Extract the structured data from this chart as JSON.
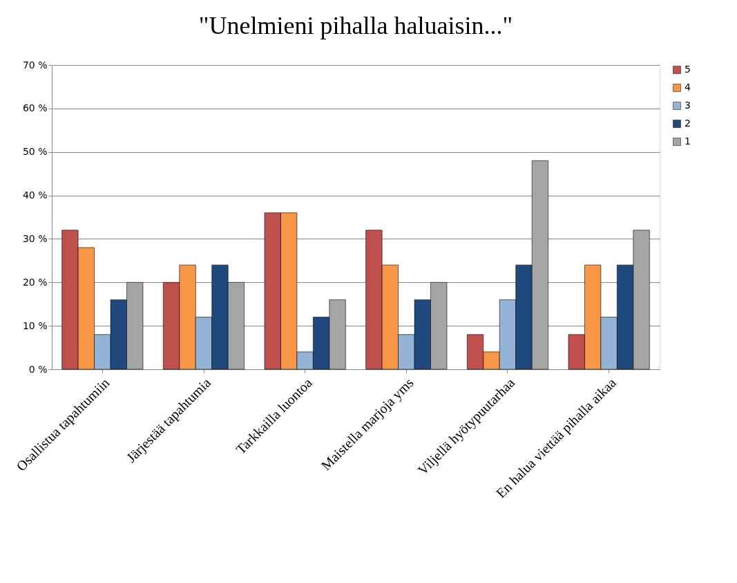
{
  "chart_data": {
    "type": "bar",
    "title": "\"Unelmieni pihalla haluaisin...\"",
    "categories": [
      "Osallistua tapahtumiin",
      "Järjestää tapahtumia",
      "Tarkkailla luontoa",
      "Maistella marjoja yms",
      "Viljellä hyötypuutarhaa",
      "En halua viettää pihalla aikaa"
    ],
    "series": [
      {
        "name": "5",
        "color": "#c0504d",
        "values": [
          32,
          20,
          36,
          32,
          8,
          8
        ]
      },
      {
        "name": "4",
        "color": "#f79646",
        "values": [
          28,
          24,
          36,
          24,
          4,
          24
        ]
      },
      {
        "name": "3",
        "color": "#95b3d7",
        "values": [
          8,
          12,
          4,
          8,
          16,
          12
        ]
      },
      {
        "name": "2",
        "color": "#1f497d",
        "values": [
          16,
          24,
          12,
          16,
          24,
          24
        ]
      },
      {
        "name": "1",
        "color": "#a5a5a5",
        "values": [
          20,
          20,
          16,
          20,
          48,
          32
        ]
      }
    ],
    "ylim": [
      0,
      70
    ],
    "yticks": [
      {
        "value": 0,
        "label": "0 %"
      },
      {
        "value": 10,
        "label": "10 %"
      },
      {
        "value": 20,
        "label": "20 %"
      },
      {
        "value": 30,
        "label": "30 %"
      },
      {
        "value": 40,
        "label": "40 %"
      },
      {
        "value": 50,
        "label": "50 %"
      },
      {
        "value": 60,
        "label": "60 %"
      },
      {
        "value": 70,
        "label": "70 %"
      }
    ],
    "grid": "y",
    "legend": "right"
  }
}
